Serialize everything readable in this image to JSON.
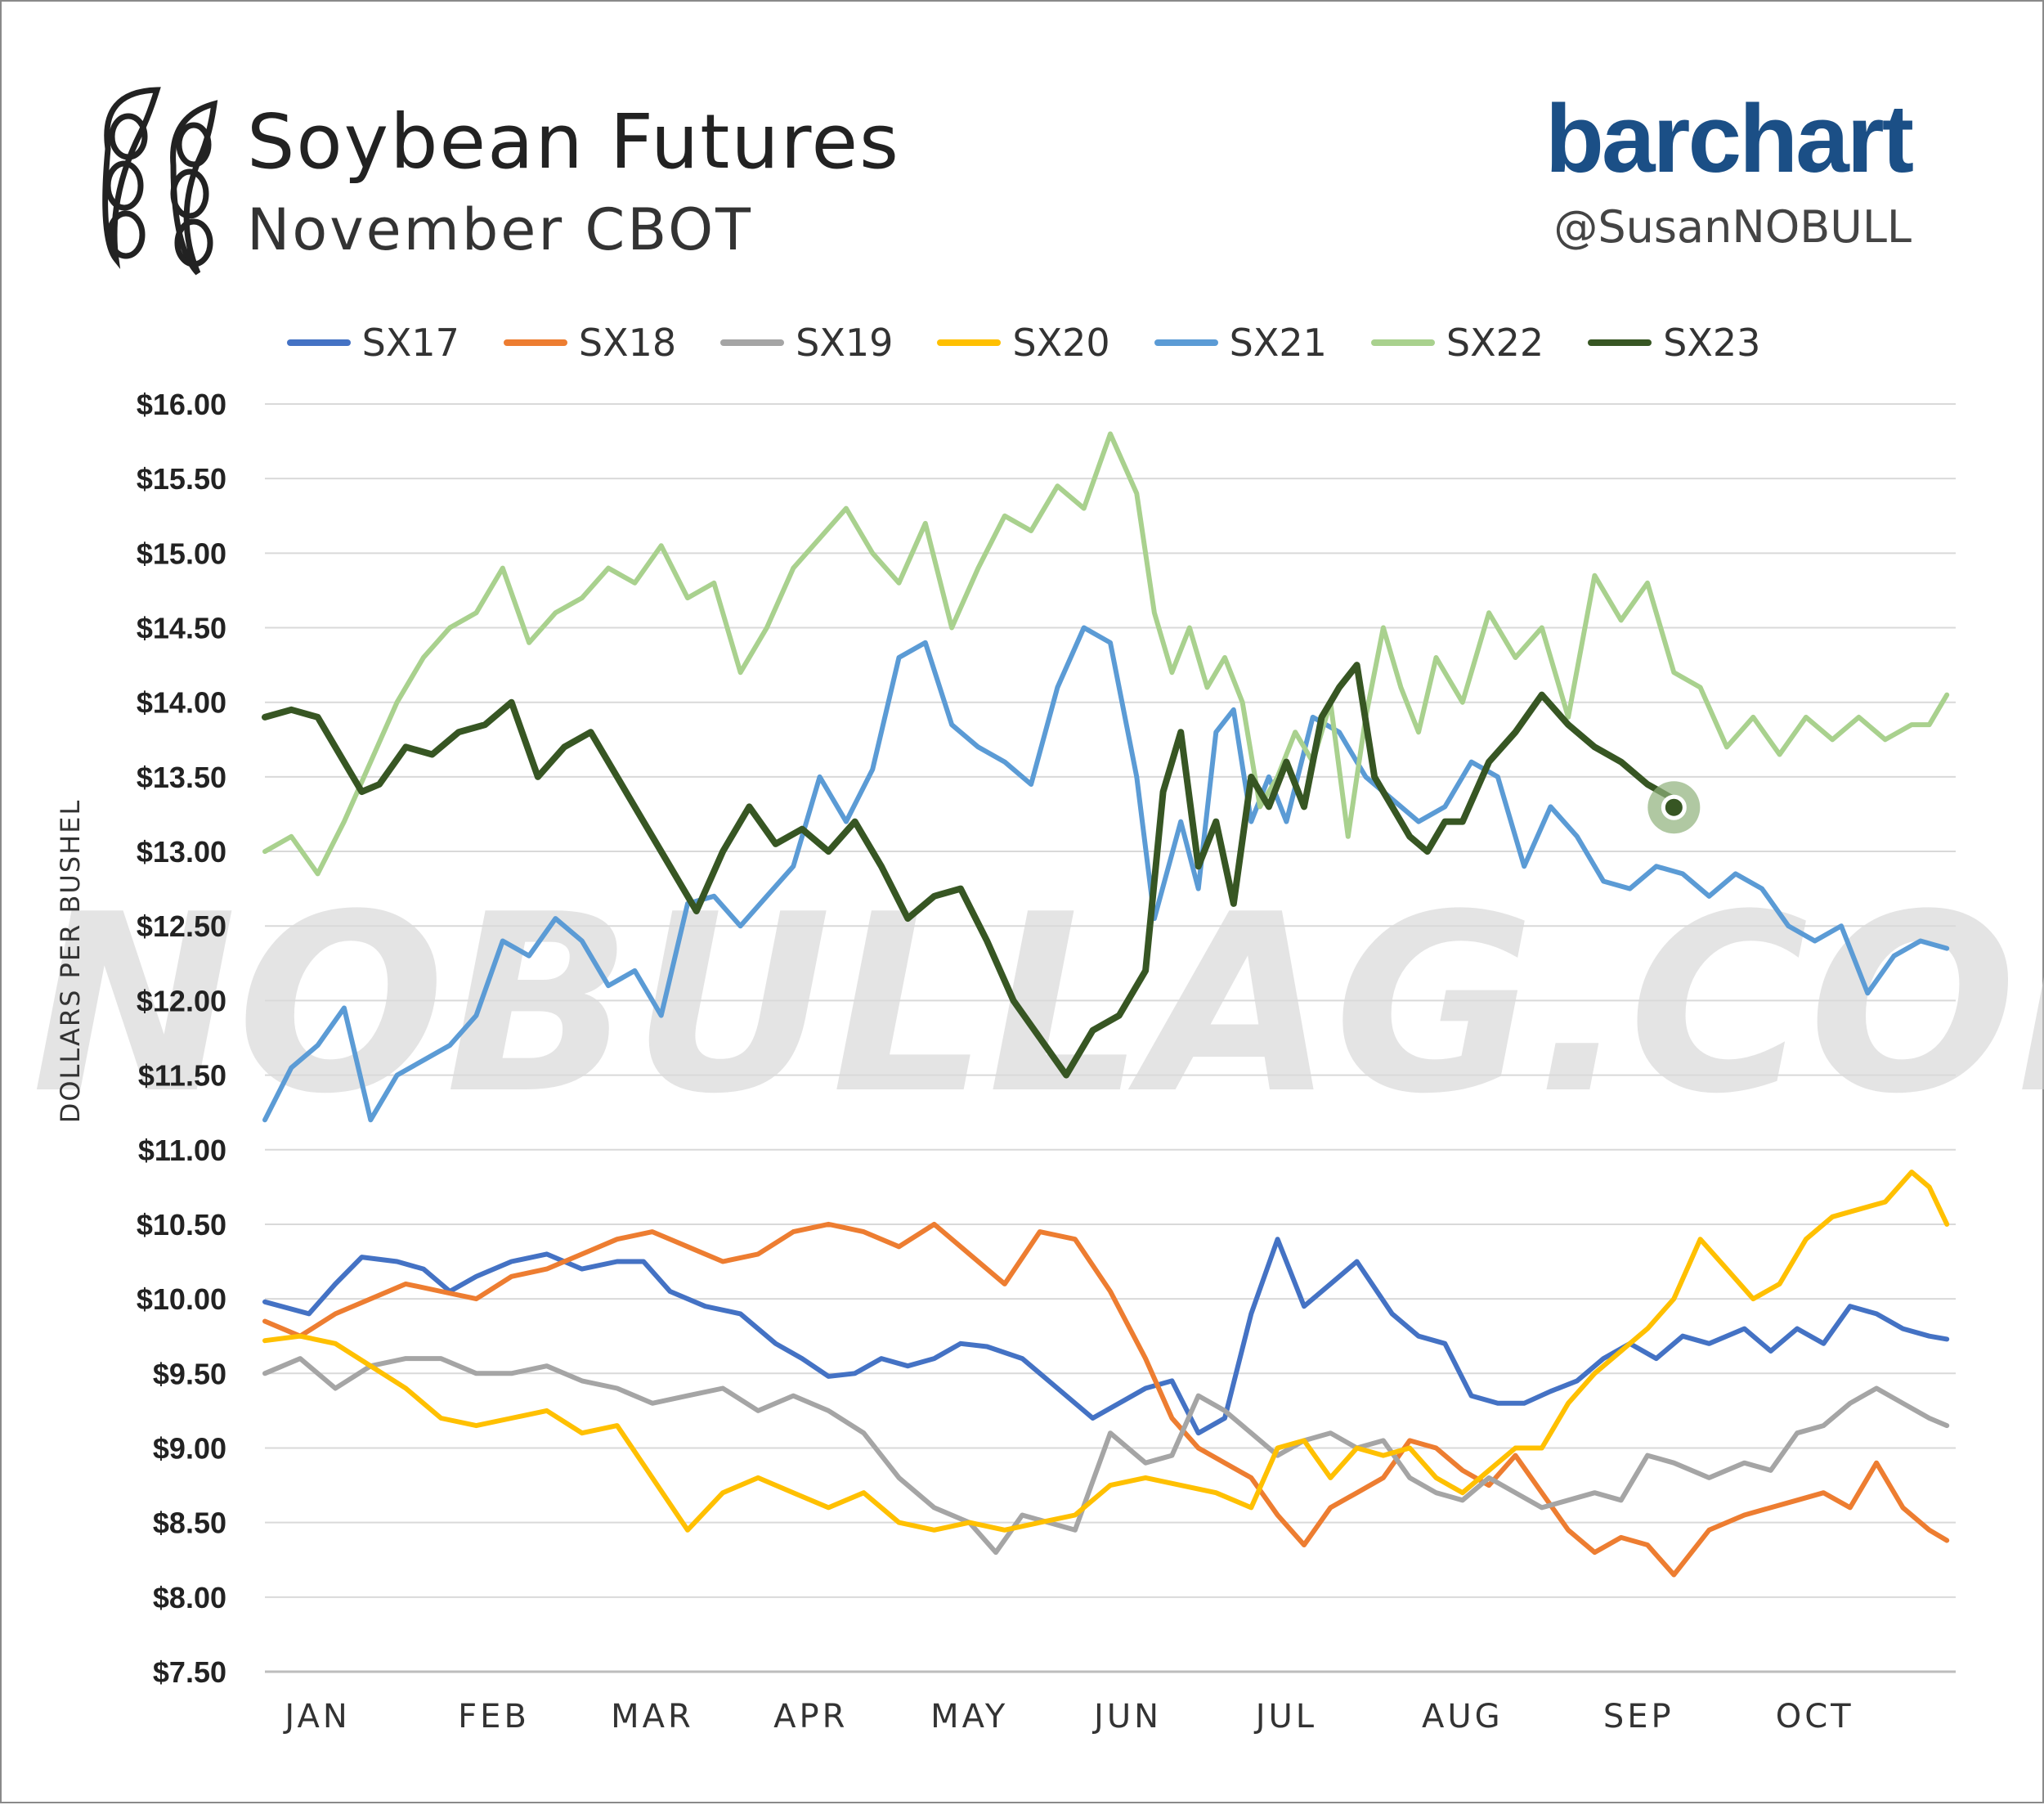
{
  "header": {
    "title": "Soybean Futures",
    "subtitle": "November CBOT",
    "brand": "barchart",
    "handle": "@SusanNOBULL"
  },
  "watermark": "NOBULLAG.COM",
  "chart_data": {
    "type": "line",
    "title": "Soybean Futures",
    "subtitle": "November CBOT",
    "ylabel": "DOLLARS PER BUSHEL",
    "xlabel": "",
    "ylim": [
      7.5,
      16.0
    ],
    "yticks": [
      7.5,
      8.0,
      8.5,
      9.0,
      9.5,
      10.0,
      10.5,
      11.0,
      11.5,
      12.0,
      12.5,
      13.0,
      13.5,
      14.0,
      14.5,
      15.0,
      15.5,
      16.0
    ],
    "ytick_labels": [
      "$7.50",
      "$8.00",
      "$8.50",
      "$9.00",
      "$9.50",
      "$10.00",
      "$10.50",
      "$11.00",
      "$11.50",
      "$12.00",
      "$12.50",
      "$13.00",
      "$13.50",
      "$14.00",
      "$14.50",
      "$15.00",
      "$15.50",
      "$16.00"
    ],
    "xlim": [
      0,
      9.6
    ],
    "months": [
      "JAN",
      "FEB",
      "MAR",
      "APR",
      "MAY",
      "JUN",
      "JUL",
      "AUG",
      "SEP",
      "OCT"
    ],
    "month_positions": [
      0.3,
      1.3,
      2.2,
      3.1,
      4.0,
      4.9,
      5.8,
      6.8,
      7.8,
      8.8
    ],
    "grid": true,
    "legend_position": "top",
    "series": [
      {
        "name": "SX17",
        "color": "#4472c4",
        "x": [
          0,
          0.25,
          0.4,
          0.55,
          0.75,
          0.9,
          1.05,
          1.2,
          1.4,
          1.6,
          1.8,
          2.0,
          2.15,
          2.3,
          2.5,
          2.7,
          2.9,
          3.05,
          3.2,
          3.35,
          3.5,
          3.65,
          3.8,
          3.95,
          4.1,
          4.3,
          4.5,
          4.7,
          4.85,
          5.0,
          5.15,
          5.3,
          5.45,
          5.6,
          5.75,
          5.9,
          6.05,
          6.2,
          6.4,
          6.55,
          6.7,
          6.85,
          7.0,
          7.15,
          7.3,
          7.45,
          7.6,
          7.75,
          7.9,
          8.05,
          8.2,
          8.4,
          8.55,
          8.7,
          8.85,
          9.0,
          9.15,
          9.3,
          9.45,
          9.55
        ],
        "values": [
          9.98,
          9.9,
          10.1,
          10.28,
          10.25,
          10.2,
          10.05,
          10.15,
          10.25,
          10.3,
          10.2,
          10.25,
          10.25,
          10.05,
          9.95,
          9.9,
          9.7,
          9.6,
          9.48,
          9.5,
          9.6,
          9.55,
          9.6,
          9.7,
          9.68,
          9.6,
          9.4,
          9.2,
          9.3,
          9.4,
          9.45,
          9.1,
          9.2,
          9.9,
          10.4,
          9.95,
          10.1,
          10.25,
          9.9,
          9.75,
          9.7,
          9.35,
          9.3,
          9.3,
          9.38,
          9.45,
          9.6,
          9.7,
          9.6,
          9.75,
          9.7,
          9.8,
          9.65,
          9.8,
          9.7,
          9.95,
          9.9,
          9.8,
          9.75,
          9.73
        ]
      },
      {
        "name": "SX18",
        "color": "#ed7d31",
        "x": [
          0,
          0.2,
          0.4,
          0.6,
          0.8,
          1.0,
          1.2,
          1.4,
          1.6,
          1.8,
          2.0,
          2.2,
          2.4,
          2.6,
          2.8,
          3.0,
          3.2,
          3.4,
          3.6,
          3.8,
          4.0,
          4.2,
          4.4,
          4.6,
          4.8,
          5.0,
          5.15,
          5.3,
          5.45,
          5.6,
          5.75,
          5.9,
          6.05,
          6.2,
          6.35,
          6.5,
          6.65,
          6.8,
          6.95,
          7.1,
          7.25,
          7.4,
          7.55,
          7.7,
          7.85,
          8.0,
          8.2,
          8.4,
          8.55,
          8.7,
          8.85,
          9.0,
          9.15,
          9.3,
          9.45,
          9.55
        ],
        "values": [
          9.85,
          9.75,
          9.9,
          10.0,
          10.1,
          10.05,
          10.0,
          10.15,
          10.2,
          10.3,
          10.4,
          10.45,
          10.35,
          10.25,
          10.3,
          10.45,
          10.5,
          10.45,
          10.35,
          10.5,
          10.3,
          10.1,
          10.45,
          10.4,
          10.05,
          9.6,
          9.2,
          9.0,
          8.9,
          8.8,
          8.55,
          8.35,
          8.6,
          8.7,
          8.8,
          9.05,
          9.0,
          8.85,
          8.75,
          8.95,
          8.7,
          8.45,
          8.3,
          8.4,
          8.35,
          8.15,
          8.45,
          8.55,
          8.6,
          8.65,
          8.7,
          8.6,
          8.9,
          8.6,
          8.45,
          8.38
        ]
      },
      {
        "name": "SX19",
        "color": "#a5a5a5",
        "x": [
          0,
          0.2,
          0.4,
          0.6,
          0.8,
          1.0,
          1.2,
          1.4,
          1.6,
          1.8,
          2.0,
          2.2,
          2.4,
          2.6,
          2.8,
          3.0,
          3.2,
          3.4,
          3.6,
          3.8,
          4.0,
          4.15,
          4.3,
          4.45,
          4.6,
          4.8,
          5.0,
          5.15,
          5.3,
          5.45,
          5.6,
          5.75,
          5.9,
          6.05,
          6.2,
          6.35,
          6.5,
          6.65,
          6.8,
          6.95,
          7.1,
          7.25,
          7.4,
          7.55,
          7.7,
          7.85,
          8.0,
          8.2,
          8.4,
          8.55,
          8.7,
          8.85,
          9.0,
          9.15,
          9.3,
          9.45,
          9.55
        ],
        "values": [
          9.5,
          9.6,
          9.4,
          9.55,
          9.6,
          9.6,
          9.5,
          9.5,
          9.55,
          9.45,
          9.4,
          9.3,
          9.35,
          9.4,
          9.25,
          9.35,
          9.25,
          9.1,
          8.8,
          8.6,
          8.5,
          8.3,
          8.55,
          8.5,
          8.45,
          9.1,
          8.9,
          8.95,
          9.35,
          9.25,
          9.1,
          8.95,
          9.05,
          9.1,
          9.0,
          9.05,
          8.8,
          8.7,
          8.65,
          8.8,
          8.7,
          8.6,
          8.65,
          8.7,
          8.65,
          8.95,
          8.9,
          8.8,
          8.9,
          8.85,
          9.1,
          9.15,
          9.3,
          9.4,
          9.3,
          9.2,
          9.15
        ]
      },
      {
        "name": "SX20",
        "color": "#ffc000",
        "x": [
          0,
          0.2,
          0.4,
          0.6,
          0.8,
          1.0,
          1.2,
          1.4,
          1.6,
          1.8,
          2.0,
          2.2,
          2.4,
          2.6,
          2.8,
          3.0,
          3.2,
          3.4,
          3.6,
          3.8,
          4.0,
          4.2,
          4.4,
          4.6,
          4.8,
          5.0,
          5.2,
          5.4,
          5.6,
          5.75,
          5.9,
          6.05,
          6.2,
          6.35,
          6.5,
          6.65,
          6.8,
          6.95,
          7.1,
          7.25,
          7.4,
          7.55,
          7.7,
          7.85,
          8.0,
          8.15,
          8.3,
          8.45,
          8.6,
          8.75,
          8.9,
          9.05,
          9.2,
          9.35,
          9.45,
          9.55
        ],
        "values": [
          9.72,
          9.75,
          9.7,
          9.55,
          9.4,
          9.2,
          9.15,
          9.2,
          9.25,
          9.1,
          9.15,
          8.8,
          8.45,
          8.7,
          8.8,
          8.7,
          8.6,
          8.7,
          8.5,
          8.45,
          8.5,
          8.45,
          8.5,
          8.55,
          8.75,
          8.8,
          8.75,
          8.7,
          8.6,
          9.0,
          9.05,
          8.8,
          9.0,
          8.95,
          9.0,
          8.8,
          8.7,
          8.85,
          9.0,
          9.0,
          9.3,
          9.5,
          9.65,
          9.8,
          10.0,
          10.4,
          10.2,
          10.0,
          10.1,
          10.4,
          10.55,
          10.6,
          10.65,
          10.85,
          10.75,
          10.5
        ]
      },
      {
        "name": "SX21",
        "color": "#5b9bd5",
        "x": [
          0,
          0.15,
          0.3,
          0.45,
          0.6,
          0.75,
          0.9,
          1.05,
          1.2,
          1.35,
          1.5,
          1.65,
          1.8,
          1.95,
          2.1,
          2.25,
          2.4,
          2.55,
          2.7,
          2.85,
          3.0,
          3.15,
          3.3,
          3.45,
          3.6,
          3.75,
          3.9,
          4.05,
          4.2,
          4.35,
          4.5,
          4.65,
          4.8,
          4.95,
          5.05,
          5.2,
          5.3,
          5.4,
          5.5,
          5.6,
          5.7,
          5.8,
          5.95,
          6.1,
          6.25,
          6.4,
          6.55,
          6.7,
          6.85,
          7.0,
          7.15,
          7.3,
          7.45,
          7.6,
          7.75,
          7.9,
          8.05,
          8.2,
          8.35,
          8.5,
          8.65,
          8.8,
          8.95,
          9.1,
          9.25,
          9.4,
          9.55
        ],
        "values": [
          11.2,
          11.55,
          11.7,
          11.95,
          11.2,
          11.5,
          11.6,
          11.7,
          11.9,
          12.4,
          12.3,
          12.55,
          12.4,
          12.1,
          12.2,
          11.9,
          12.65,
          12.7,
          12.5,
          12.7,
          12.9,
          13.5,
          13.2,
          13.55,
          14.3,
          14.4,
          13.85,
          13.7,
          13.6,
          13.45,
          14.1,
          14.5,
          14.4,
          13.5,
          12.55,
          13.2,
          12.75,
          13.8,
          13.95,
          13.2,
          13.5,
          13.2,
          13.9,
          13.8,
          13.5,
          13.35,
          13.2,
          13.3,
          13.6,
          13.5,
          12.9,
          13.3,
          13.1,
          12.8,
          12.75,
          12.9,
          12.85,
          12.7,
          12.85,
          12.75,
          12.5,
          12.4,
          12.5,
          12.05,
          12.3,
          12.4,
          12.35
        ]
      },
      {
        "name": "SX22",
        "color": "#a9d18e",
        "x": [
          0,
          0.15,
          0.3,
          0.45,
          0.6,
          0.75,
          0.9,
          1.05,
          1.2,
          1.35,
          1.5,
          1.65,
          1.8,
          1.95,
          2.1,
          2.25,
          2.4,
          2.55,
          2.7,
          2.85,
          3.0,
          3.15,
          3.3,
          3.45,
          3.6,
          3.75,
          3.9,
          4.05,
          4.2,
          4.35,
          4.5,
          4.65,
          4.8,
          4.95,
          5.05,
          5.15,
          5.25,
          5.35,
          5.45,
          5.55,
          5.65,
          5.75,
          5.85,
          5.95,
          6.05,
          6.15,
          6.25,
          6.35,
          6.45,
          6.55,
          6.65,
          6.8,
          6.95,
          7.1,
          7.25,
          7.4,
          7.55,
          7.7,
          7.85,
          8.0,
          8.15,
          8.3,
          8.45,
          8.6,
          8.75,
          8.9,
          9.05,
          9.2,
          9.35,
          9.45,
          9.55
        ],
        "values": [
          13.0,
          13.1,
          12.85,
          13.2,
          13.6,
          14.0,
          14.3,
          14.5,
          14.6,
          14.9,
          14.4,
          14.6,
          14.7,
          14.9,
          14.8,
          15.05,
          14.7,
          14.8,
          14.2,
          14.5,
          14.9,
          15.1,
          15.3,
          15.0,
          14.8,
          15.2,
          14.5,
          14.9,
          15.25,
          15.15,
          15.45,
          15.3,
          15.8,
          15.4,
          14.6,
          14.2,
          14.5,
          14.1,
          14.3,
          14.0,
          13.3,
          13.5,
          13.8,
          13.6,
          14.0,
          13.1,
          13.9,
          14.5,
          14.1,
          13.8,
          14.3,
          14.0,
          14.6,
          14.3,
          14.5,
          13.9,
          14.85,
          14.55,
          14.8,
          14.2,
          14.1,
          13.7,
          13.9,
          13.65,
          13.9,
          13.75,
          13.9,
          13.75,
          13.85,
          13.85,
          14.05
        ]
      },
      {
        "name": "SX23",
        "color": "#375623",
        "x": [
          0,
          0.15,
          0.3,
          0.45,
          0.55,
          0.65,
          0.8,
          0.95,
          1.1,
          1.25,
          1.4,
          1.55,
          1.7,
          1.85,
          2.0,
          2.15,
          2.3,
          2.45,
          2.6,
          2.75,
          2.9,
          3.05,
          3.2,
          3.35,
          3.5,
          3.65,
          3.8,
          3.95,
          4.1,
          4.25,
          4.4,
          4.55,
          4.7,
          4.85,
          5.0,
          5.1,
          5.2,
          5.3,
          5.4,
          5.5,
          5.6,
          5.7,
          5.8,
          5.9,
          6.0,
          6.1,
          6.2,
          6.3,
          6.4,
          6.5,
          6.6,
          6.7,
          6.8,
          6.95,
          7.1,
          7.25,
          7.4,
          7.55,
          7.7,
          7.85,
          8.0
        ],
        "values": [
          13.9,
          13.95,
          13.9,
          13.6,
          13.4,
          13.45,
          13.7,
          13.65,
          13.8,
          13.85,
          14.0,
          13.5,
          13.7,
          13.8,
          13.5,
          13.2,
          12.9,
          12.6,
          13.0,
          13.3,
          13.05,
          13.15,
          13.0,
          13.2,
          12.9,
          12.55,
          12.7,
          12.75,
          12.4,
          12.0,
          11.75,
          11.5,
          11.8,
          11.9,
          12.2,
          13.4,
          13.8,
          12.9,
          13.2,
          12.65,
          13.5,
          13.3,
          13.6,
          13.3,
          13.9,
          14.1,
          14.25,
          13.5,
          13.3,
          13.1,
          13.0,
          13.2,
          13.2,
          13.6,
          13.8,
          14.05,
          13.85,
          13.7,
          13.6,
          13.45,
          13.35
        ]
      }
    ]
  }
}
